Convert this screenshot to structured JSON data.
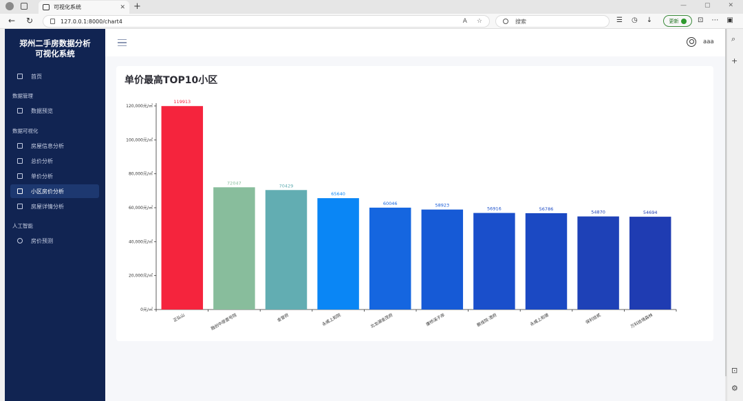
{
  "browser": {
    "tab_title": "可视化系统",
    "tab_close": "✕",
    "new_tab": "+",
    "url": "127.0.0.1:8000/chart4",
    "search_placeholder": "搜索",
    "update_label": "更新",
    "win_min": "—",
    "win_max": "▢",
    "win_close": "✕"
  },
  "sidebar": {
    "brand": "郑州二手房数据分析可视化系统",
    "home": "首页",
    "groups": [
      {
        "title": "数据管理",
        "items": [
          "数据预览"
        ]
      },
      {
        "title": "数据可视化",
        "items": [
          "房屋信息分析",
          "总价分析",
          "单价分析",
          "小区房价分析",
          "房屋详情分析"
        ]
      },
      {
        "title": "人工智能",
        "items": [
          "房价预测"
        ]
      }
    ],
    "active": "小区房价分析"
  },
  "header": {
    "username": "aaa"
  },
  "card": {
    "title": "单价最高TOP10小区"
  },
  "chart_data": {
    "type": "bar",
    "categories": [
      "正弘山",
      "融创中原壹号院",
      "金誉府",
      "永威上和院",
      "北龙湖金茂府",
      "康桥溪子岸",
      "鹏佳院·澄府",
      "永威上和璟",
      "保利拾贰",
      "万科拾境森林"
    ],
    "values": [
      119913,
      72047,
      70429,
      65640,
      60046,
      58923,
      56916,
      56786,
      54870,
      54694
    ],
    "value_labels": [
      "119913",
      "72047",
      "70429",
      "65640",
      "60046",
      "58923",
      "56916",
      "56786",
      "54870",
      "54694"
    ],
    "colors": [
      "#f5243d",
      "#88bd9c",
      "#62adb2",
      "#0a86f5",
      "#1566e0",
      "#165ad6",
      "#1a4fcb",
      "#1b49c3",
      "#1e41b7",
      "#1f3cb2"
    ],
    "label_colors": [
      "#f5243d",
      "#88bd9c",
      "#62adb2",
      "#0a86f5",
      "#1566e0",
      "#165ad6",
      "#1a4fcb",
      "#1b49c3",
      "#1e41b7",
      "#1f3cb2"
    ],
    "y_ticks": [
      "0元/㎡",
      "20,000元/㎡",
      "40,000元/㎡",
      "60,000元/㎡",
      "80,000元/㎡",
      "100,000元/㎡",
      "120,000元/㎡"
    ],
    "ylim": [
      0,
      120000
    ],
    "grid": false,
    "legend": "none"
  }
}
